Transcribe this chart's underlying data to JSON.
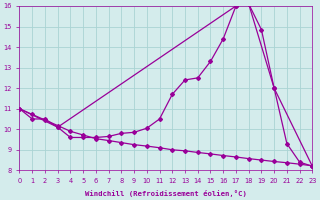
{
  "xlabel": "Windchill (Refroidissement éolien,°C)",
  "bg_color": "#d4ecec",
  "line_color": "#990099",
  "grid_color": "#aad4d4",
  "xlim": [
    0,
    23
  ],
  "ylim": [
    8,
    16
  ],
  "xticks": [
    0,
    1,
    2,
    3,
    4,
    5,
    6,
    7,
    8,
    9,
    10,
    11,
    12,
    13,
    14,
    15,
    16,
    17,
    18,
    19,
    20,
    21,
    22,
    23
  ],
  "yticks": [
    8,
    9,
    10,
    11,
    12,
    13,
    14,
    15,
    16
  ],
  "curve1_x": [
    0,
    1,
    2,
    3,
    4,
    5,
    6,
    7,
    8,
    9,
    10,
    11,
    12,
    13,
    14,
    15,
    16,
    17,
    18,
    19,
    20,
    21,
    22,
    23
  ],
  "curve1_y": [
    11.0,
    10.5,
    10.5,
    10.1,
    9.6,
    9.6,
    9.6,
    9.65,
    9.8,
    9.85,
    10.05,
    10.5,
    11.7,
    12.4,
    12.5,
    13.3,
    14.4,
    16.0,
    16.1,
    14.85,
    12.0,
    9.3,
    8.4,
    8.2
  ],
  "curve2_x": [
    0,
    3,
    17,
    18,
    20,
    23
  ],
  "curve2_y": [
    11.0,
    10.1,
    16.0,
    16.1,
    12.0,
    8.2
  ],
  "curve3_x": [
    0,
    1,
    2,
    3,
    4,
    5,
    6,
    7,
    8,
    9,
    10,
    11,
    12,
    13,
    14,
    15,
    16,
    17,
    18,
    19,
    20,
    21,
    22,
    23
  ],
  "curve3_y": [
    11.0,
    10.72,
    10.45,
    10.18,
    9.9,
    9.72,
    9.54,
    9.45,
    9.35,
    9.25,
    9.18,
    9.1,
    9.0,
    8.95,
    8.87,
    8.8,
    8.72,
    8.65,
    8.57,
    8.5,
    8.43,
    8.37,
    8.3,
    8.22
  ]
}
